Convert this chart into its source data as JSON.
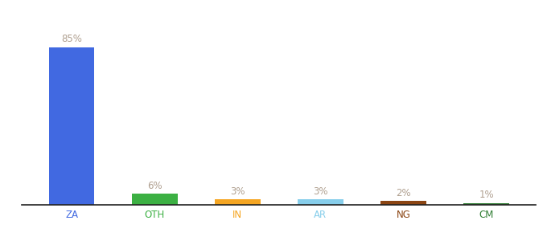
{
  "categories": [
    "ZA",
    "OTH",
    "IN",
    "AR",
    "NG",
    "CM"
  ],
  "values": [
    85,
    6,
    3,
    3,
    2,
    1
  ],
  "bar_colors": [
    "#4169e1",
    "#3cb043",
    "#f5a623",
    "#87ceeb",
    "#8b4513",
    "#2e7d32"
  ],
  "label_color": "#b0a090",
  "background_color": "#ffffff",
  "xlabel_color": "#4169e1",
  "ylim": [
    0,
    100
  ],
  "bar_width": 0.55,
  "label_fontsize": 8.5,
  "xlabel_fontsize": 8.5
}
